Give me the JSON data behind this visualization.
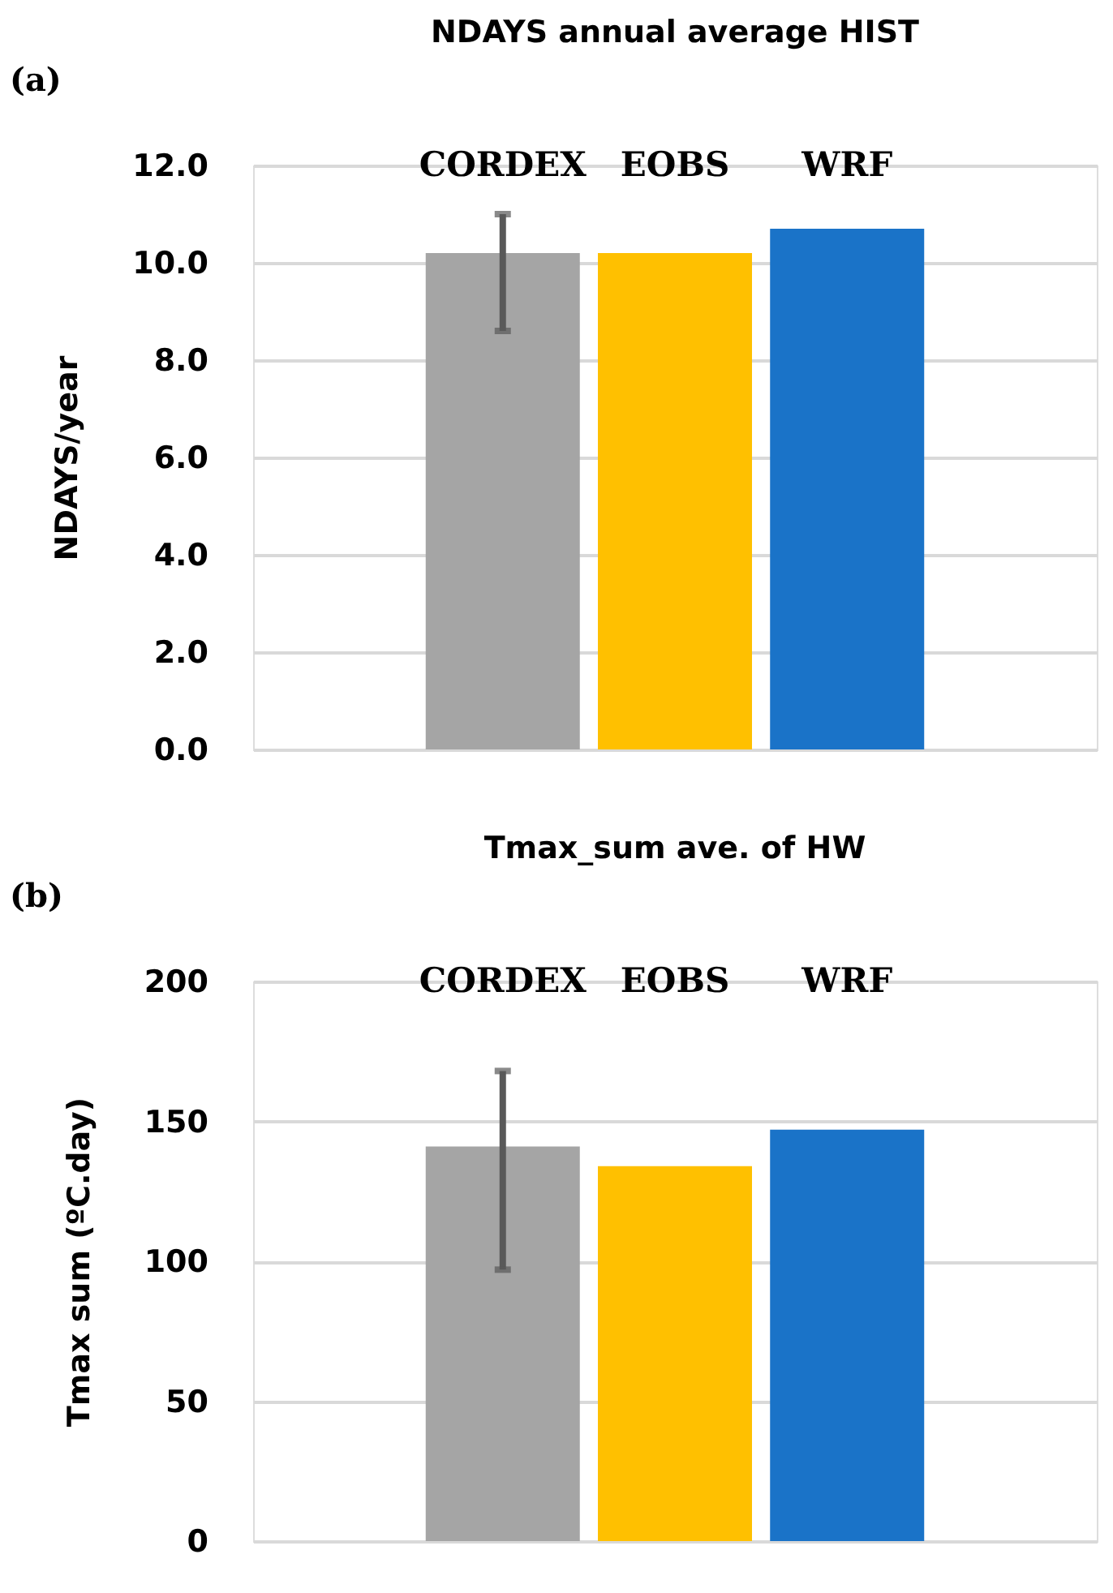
{
  "chart_data": [
    {
      "type": "bar",
      "title": "NDAYS annual average HIST",
      "ylabel": "NDAYS/year",
      "categories": [
        "CORDEX",
        "EOBS",
        "WRF"
      ],
      "values": [
        10.2,
        10.2,
        10.7
      ],
      "colors": [
        "#a5a5a5",
        "#ffc000",
        "#1a73c8"
      ],
      "errors": [
        [
          8.6,
          11.0
        ],
        null,
        null
      ],
      "ylim": [
        0,
        12
      ],
      "yticks": [
        {
          "value": 0,
          "label": "0.0"
        },
        {
          "value": 2,
          "label": "2.0"
        },
        {
          "value": 4,
          "label": "4.0"
        },
        {
          "value": 6,
          "label": "6.0"
        },
        {
          "value": 8,
          "label": "8.0"
        },
        {
          "value": 10,
          "label": "10.0"
        },
        {
          "value": 12,
          "label": "12.0"
        }
      ],
      "grid": "y",
      "annotations": [
        "(a)"
      ]
    },
    {
      "type": "bar",
      "title": "Tmax_sum ave. of HW",
      "ylabel": "Tmax sum (ºC.day)",
      "categories": [
        "CORDEX",
        "EOBS",
        "WRF"
      ],
      "values": [
        141,
        134,
        147
      ],
      "colors": [
        "#a5a5a5",
        "#ffc000",
        "#1a73c8"
      ],
      "errors": [
        [
          97,
          168
        ],
        null,
        null
      ],
      "ylim": [
        0,
        200
      ],
      "yticks": [
        0,
        50,
        100,
        150,
        200
      ],
      "grid": "y",
      "annotations": [
        "(b)"
      ]
    }
  ]
}
